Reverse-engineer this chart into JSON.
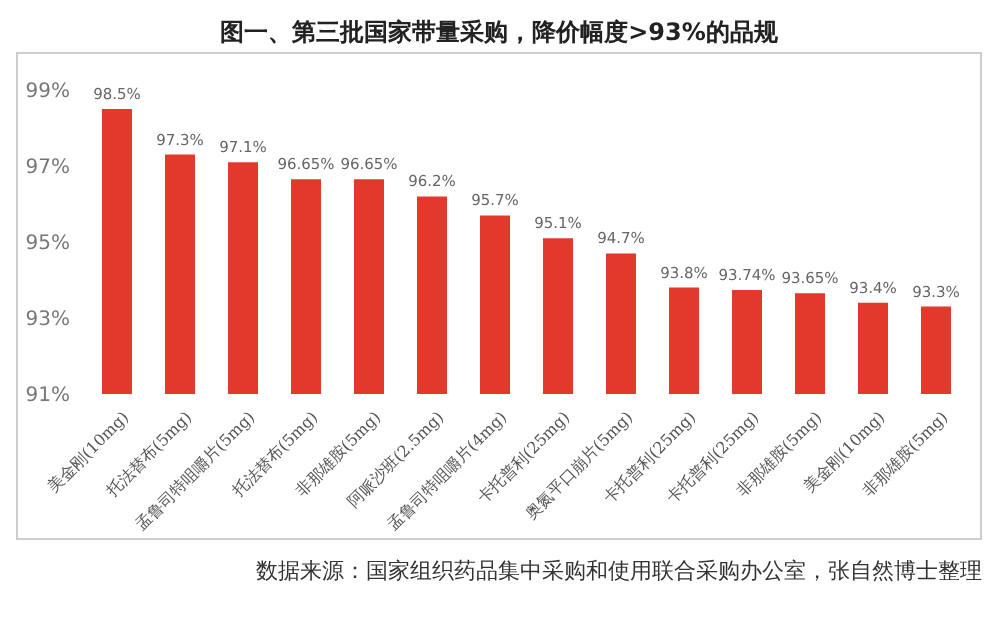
{
  "chart_data": {
    "type": "bar",
    "title": "图一、第三批国家带量采购，降价幅度>93%的品规",
    "categories": [
      "美金刚(10mg)",
      "托法替布(5mg)",
      "孟鲁司特咀嚼片(5mg)",
      "托法替布(5mg)",
      "非那雄胺(5mg)",
      "阿哌沙班(2.5mg)",
      "孟鲁司特咀嚼片(4mg)",
      "卡托普利(25mg)",
      "奥氮平口崩片(5mg)",
      "卡托普利(25mg)",
      "卡托普利(25mg)",
      "非那雄胺(5mg)",
      "美金刚(10mg)",
      "非那雄胺(5mg)"
    ],
    "values": [
      98.5,
      97.3,
      97.1,
      96.65,
      96.65,
      96.2,
      95.7,
      95.1,
      94.7,
      93.8,
      93.74,
      93.65,
      93.4,
      93.3
    ],
    "value_labels": [
      "98.5%",
      "97.3%",
      "97.1%",
      "96.65%",
      "96.65%",
      "96.2%",
      "95.7%",
      "95.1%",
      "94.7%",
      "93.8%",
      "93.74%",
      "93.65%",
      "93.4%",
      "93.3%"
    ],
    "color": "#e3382c",
    "ylim": [
      91,
      99
    ],
    "yticks": [
      {
        "value": 91,
        "label": "91%"
      },
      {
        "value": 93,
        "label": "93%"
      },
      {
        "value": 95,
        "label": "95%"
      },
      {
        "value": 97,
        "label": "97%"
      },
      {
        "value": 99,
        "label": "99%"
      }
    ],
    "grid": false,
    "legend": false,
    "annotations": [
      "数据来源：国家组织药品集中采购和使用联合采购办公室，张自然博士整理"
    ]
  }
}
